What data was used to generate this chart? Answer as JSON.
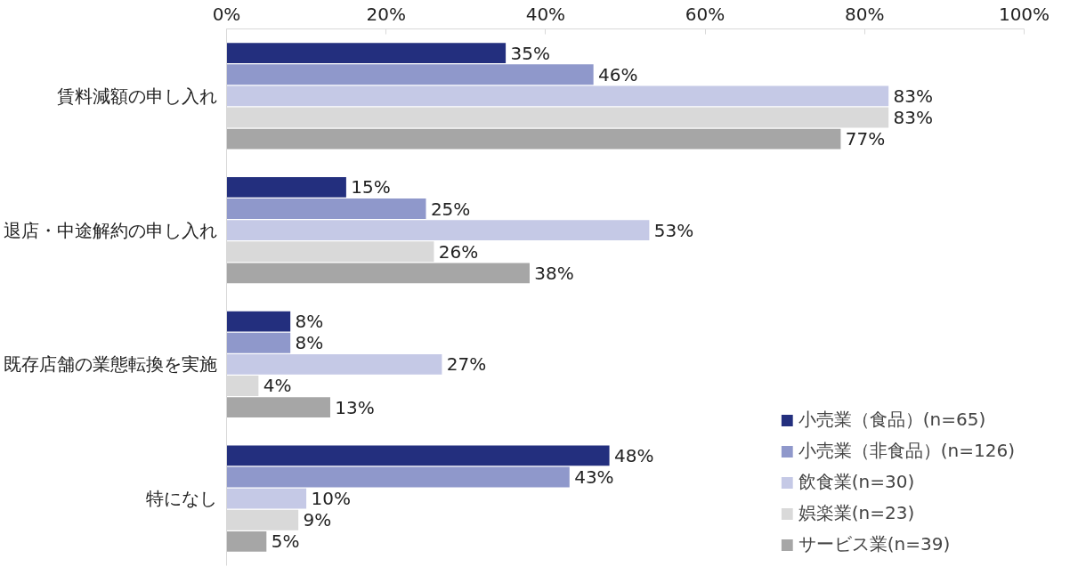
{
  "chart_data": {
    "type": "bar",
    "orientation": "horizontal",
    "categories": [
      "賃料減額の申し入れ",
      "退店・中途解約の申し入れ",
      "既存店舗の業態転換を実施",
      "特になし"
    ],
    "series": [
      {
        "name": "小売業（食品）(n=65)",
        "color": "#232f7e",
        "values": [
          35,
          15,
          8,
          48
        ],
        "value_labels": [
          "35%",
          "15%",
          "8%",
          "48%"
        ]
      },
      {
        "name": "小売業（非食品）(n=126)",
        "color": "#8f98cb",
        "values": [
          46,
          25,
          8,
          43
        ],
        "value_labels": [
          "46%",
          "25%",
          "8%",
          "43%"
        ]
      },
      {
        "name": "飲食業(n=30)",
        "color": "#c5c9e6",
        "values": [
          83,
          53,
          27,
          10
        ],
        "value_labels": [
          "83%",
          "53%",
          "27%",
          "10%"
        ]
      },
      {
        "name": "娯楽業(n=23)",
        "color": "#d9d9d9",
        "values": [
          83,
          26,
          4,
          9
        ],
        "value_labels": [
          "83%",
          "26%",
          "4%",
          "9%"
        ]
      },
      {
        "name": "サービス業(n=39)",
        "color": "#a6a6a6",
        "values": [
          77,
          38,
          13,
          5
        ],
        "value_labels": [
          "77%",
          "38%",
          "13%",
          "5%"
        ]
      }
    ],
    "xlim": [
      0,
      100
    ],
    "xticks": [
      {
        "value": 0,
        "label": "0%"
      },
      {
        "value": 20,
        "label": "20%"
      },
      {
        "value": 40,
        "label": "40%"
      },
      {
        "value": 60,
        "label": "60%"
      },
      {
        "value": 80,
        "label": "80%"
      },
      {
        "value": 100,
        "label": "100%"
      }
    ],
    "grid": false,
    "legend": "bottom right"
  }
}
